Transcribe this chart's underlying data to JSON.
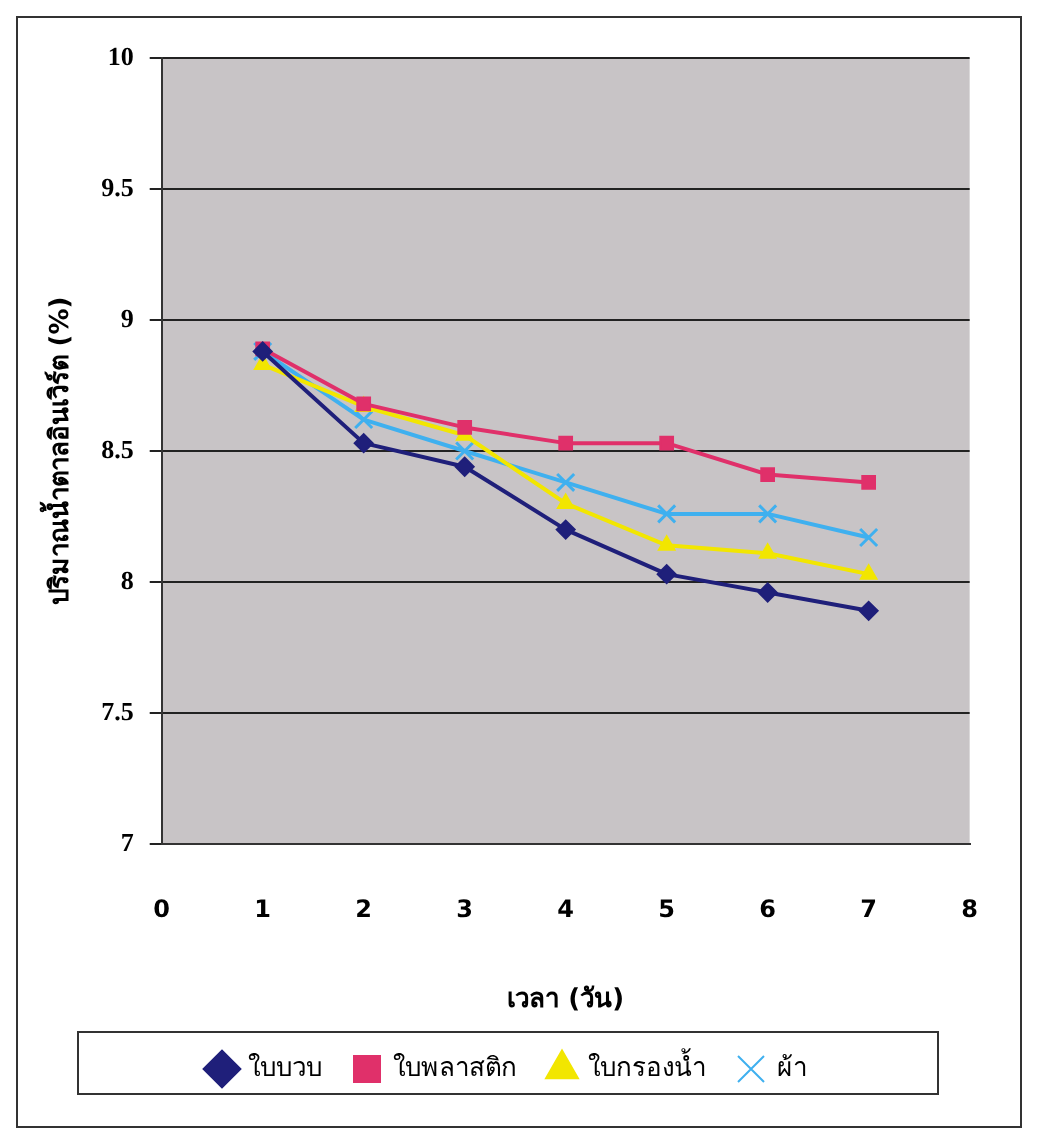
{
  "chart_data": {
    "type": "line",
    "xlabel": "เวลา (วัน)",
    "ylabel": "ปริมาณน้ำตาลอินเวิร์ต (%)",
    "x": [
      1,
      2,
      3,
      4,
      5,
      6,
      7
    ],
    "series": [
      {
        "name": "ใบบวบ",
        "color": "#1f1f7a",
        "marker": "diamond",
        "values": [
          8.88,
          8.53,
          8.44,
          8.2,
          8.03,
          7.96,
          7.89
        ]
      },
      {
        "name": "ใบพลาสติก",
        "color": "#e0306a",
        "marker": "square",
        "values": [
          8.89,
          8.68,
          8.59,
          8.53,
          8.53,
          8.41,
          8.38
        ]
      },
      {
        "name": "ใบกรองน้ำ",
        "color": "#f2e600",
        "marker": "triangle",
        "values": [
          8.83,
          8.67,
          8.56,
          8.3,
          8.14,
          8.11,
          8.03
        ]
      },
      {
        "name": "ผ้า",
        "color": "#3fb0ef",
        "marker": "cross",
        "values": [
          8.88,
          8.62,
          8.5,
          8.38,
          8.26,
          8.26,
          8.17
        ]
      }
    ],
    "xlim": [
      0,
      8
    ],
    "xticks": [
      0,
      1,
      2,
      3,
      4,
      5,
      6,
      7,
      8
    ],
    "ylim": [
      7,
      10
    ],
    "yticks": [
      7,
      7.5,
      8,
      8.5,
      9,
      9.5,
      10
    ],
    "grid": "y",
    "legend": "bottom",
    "line_style": "solid"
  }
}
